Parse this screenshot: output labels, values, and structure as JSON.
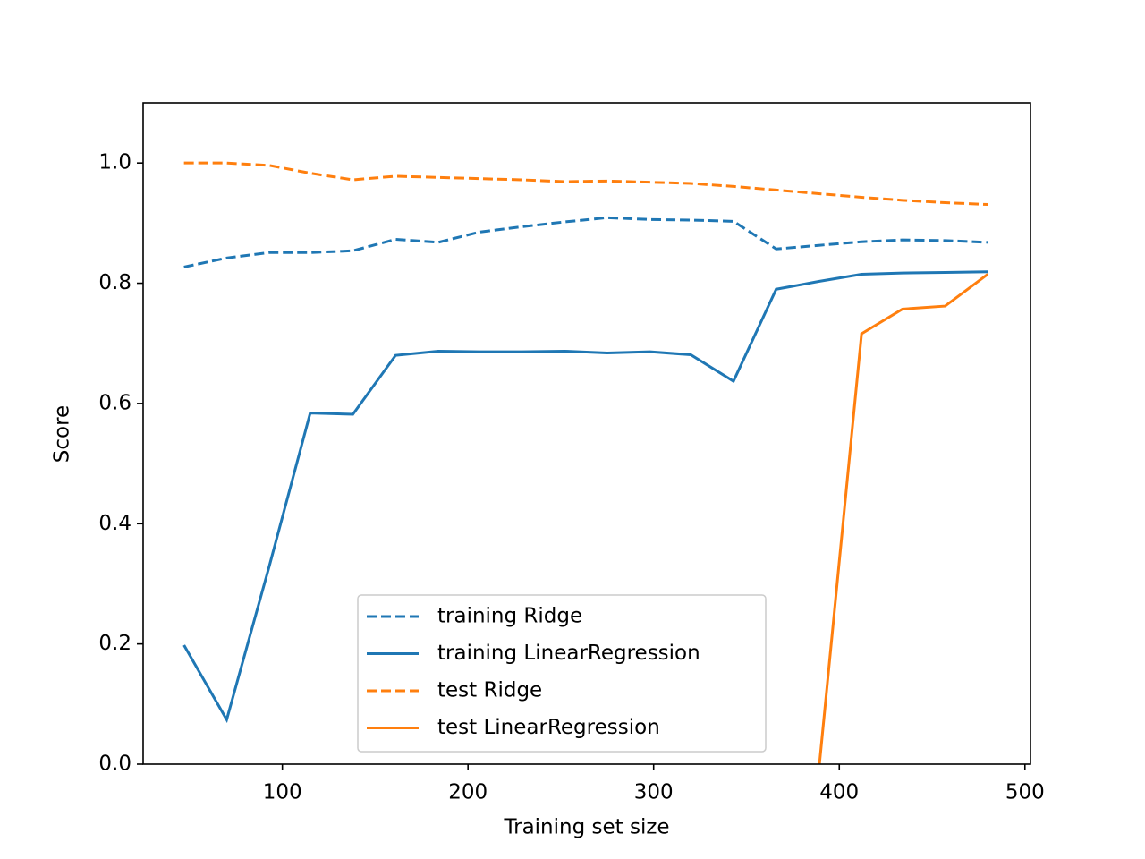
{
  "chart_data": {
    "type": "line",
    "xlabel": "Training set size",
    "ylabel": "Score",
    "x": [
      47,
      70,
      93,
      115,
      138,
      161,
      184,
      206,
      229,
      252,
      275,
      298,
      320,
      343,
      366,
      389,
      412,
      434,
      457,
      480
    ],
    "series": [
      {
        "name": "training Ridge",
        "color": "#1f77b4",
        "dash": "dashed",
        "values": [
          0.827,
          0.842,
          0.851,
          0.851,
          0.854,
          0.873,
          0.868,
          0.885,
          0.894,
          0.902,
          0.909,
          0.906,
          0.905,
          0.903,
          0.857,
          0.863,
          0.869,
          0.872,
          0.871,
          0.868
        ]
      },
      {
        "name": "training LinearRegression",
        "color": "#1f77b4",
        "dash": "solid",
        "values": [
          0.198,
          0.074,
          0.33,
          0.584,
          0.582,
          0.68,
          0.687,
          0.686,
          0.686,
          0.687,
          0.684,
          0.686,
          0.681,
          0.637,
          0.79,
          0.803,
          0.815,
          0.817,
          0.818,
          0.819
        ]
      },
      {
        "name": "test Ridge",
        "color": "#ff7f0e",
        "dash": "dashed",
        "values": [
          1.0,
          1.0,
          0.996,
          0.983,
          0.972,
          0.978,
          0.976,
          0.974,
          0.972,
          0.969,
          0.97,
          0.968,
          0.966,
          0.961,
          0.955,
          0.949,
          0.943,
          0.938,
          0.934,
          0.931
        ]
      },
      {
        "name": "test LinearRegression",
        "color": "#ff7f0e",
        "dash": "solid",
        "values": [
          null,
          null,
          null,
          null,
          null,
          null,
          null,
          null,
          null,
          null,
          null,
          null,
          null,
          null,
          null,
          -0.01,
          0.716,
          0.757,
          0.762,
          0.815
        ]
      }
    ],
    "xlim": [
      25,
      503
    ],
    "ylim": [
      0,
      1.1
    ],
    "xticks": [
      100,
      200,
      300,
      400,
      500
    ],
    "yticks": [
      {
        "value": 0,
        "label": "0.0"
      },
      0.2,
      0.4,
      0.6,
      0.8,
      {
        "value": 1,
        "label": "1.0"
      }
    ],
    "legend": "lower center",
    "grid": false
  }
}
